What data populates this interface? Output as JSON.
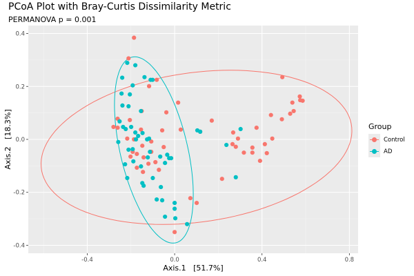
{
  "chart_data": {
    "type": "scatter",
    "title": "PCoA Plot with Bray-Curtis Dissimilarity Metric",
    "subtitle": "PERMANOVA p = 0.001",
    "xlabel": "Axis.1   [51.7%]",
    "ylabel": "Axis.2   [18.3%]",
    "xlim": [
      -0.67,
      0.84
    ],
    "ylim": [
      -0.43,
      0.43
    ],
    "x_ticks": [
      -0.4,
      0.0,
      0.4,
      0.8
    ],
    "x_tick_labels": [
      "-0.4",
      "0.0",
      "0.4",
      "0.8"
    ],
    "y_ticks": [
      -0.4,
      -0.2,
      0.0,
      0.2,
      0.4
    ],
    "y_tick_labels": [
      "-0.4",
      "-0.2",
      "0.0",
      "0.2",
      "0.4"
    ],
    "grid": true,
    "legend": {
      "title": "Group",
      "position": "right"
    },
    "series": [
      {
        "name": "Control",
        "color": "#F8766D",
        "points": [
          [
            -0.186,
            0.384
          ],
          [
            -0.211,
            0.306
          ],
          [
            -0.082,
            0.225
          ],
          [
            -0.117,
            0.201
          ],
          [
            -0.151,
            0.107
          ],
          [
            -0.038,
            0.102
          ],
          [
            0.016,
            0.139
          ],
          [
            -0.261,
            0.078
          ],
          [
            -0.28,
            0.047
          ],
          [
            -0.261,
            0.044
          ],
          [
            -0.205,
            0.073
          ],
          [
            0.028,
            0.037
          ],
          [
            -0.217,
            0.003
          ],
          [
            -0.186,
            0.0
          ],
          [
            -0.154,
            0.037
          ],
          [
            -0.057,
            0.034
          ],
          [
            -0.192,
            -0.047
          ],
          [
            -0.202,
            -0.065
          ],
          [
            -0.173,
            -0.055
          ],
          [
            -0.107,
            -0.008
          ],
          [
            -0.107,
            -0.047
          ],
          [
            -0.05,
            -0.029
          ],
          [
            -0.148,
            -0.024
          ],
          [
            -0.142,
            -0.068
          ],
          [
            -0.12,
            -0.092
          ],
          [
            -0.088,
            -0.086
          ],
          [
            -0.173,
            -0.107
          ],
          [
            -0.072,
            -0.115
          ],
          [
            -0.145,
            -0.123
          ],
          [
            0.072,
            -0.222
          ],
          [
            0.101,
            -0.24
          ],
          [
            0.0,
            -0.35
          ],
          [
            0.17,
            0.071
          ],
          [
            0.117,
            0.029
          ],
          [
            0.268,
            0.026
          ],
          [
            0.265,
            -0.018
          ],
          [
            0.29,
            0.003
          ],
          [
            0.356,
            -0.031
          ],
          [
            0.375,
            0.044
          ],
          [
            0.413,
            -0.018
          ],
          [
            0.447,
            0.003
          ],
          [
            0.441,
            0.092
          ],
          [
            0.491,
            0.076
          ],
          [
            0.539,
            0.139
          ],
          [
            0.573,
            0.162
          ],
          [
            0.356,
            -0.05
          ],
          [
            0.422,
            -0.052
          ],
          [
            0.391,
            -0.081
          ],
          [
            0.217,
            -0.149
          ],
          [
            0.493,
            0.235
          ],
          [
            0.575,
            0.148
          ],
          [
            0.586,
            0.146
          ],
          [
            0.529,
            0.097
          ],
          [
            0.545,
            0.107
          ],
          [
            0.317,
            -0.05
          ],
          [
            0.28,
            -0.028
          ]
        ]
      },
      {
        "name": "AD",
        "color": "#00BFC4",
        "points": [
          [
            -0.217,
            0.289
          ],
          [
            -0.18,
            0.28
          ],
          [
            -0.24,
            0.233
          ],
          [
            -0.192,
            0.204
          ],
          [
            -0.138,
            0.235
          ],
          [
            -0.11,
            0.225
          ],
          [
            -0.101,
            0.225
          ],
          [
            -0.243,
            0.173
          ],
          [
            -0.205,
            0.17
          ],
          [
            -0.211,
            0.125
          ],
          [
            -0.239,
            0.128
          ],
          [
            -0.252,
            0.068
          ],
          [
            -0.236,
            0.047
          ],
          [
            -0.199,
            0.047
          ],
          [
            -0.154,
            0.107
          ],
          [
            -0.147,
            0.024
          ],
          [
            -0.167,
            0.013
          ],
          [
            -0.18,
            0.026
          ],
          [
            -0.224,
            0.039
          ],
          [
            -0.258,
            -0.01
          ],
          [
            -0.192,
            -0.037
          ],
          [
            -0.211,
            -0.039
          ],
          [
            -0.177,
            0.0
          ],
          [
            -0.126,
            0.0
          ],
          [
            -0.117,
            0.003
          ],
          [
            -0.113,
            -0.047
          ],
          [
            -0.123,
            -0.068
          ],
          [
            -0.189,
            -0.083
          ],
          [
            -0.227,
            -0.094
          ],
          [
            -0.154,
            -0.102
          ],
          [
            -0.217,
            -0.146
          ],
          [
            -0.066,
            -0.065
          ],
          [
            -0.034,
            -0.058
          ],
          [
            -0.044,
            -0.089
          ],
          [
            -0.025,
            -0.071
          ],
          [
            -0.1,
            -0.146
          ],
          [
            -0.063,
            -0.18
          ],
          [
            -0.148,
            -0.165
          ],
          [
            -0.142,
            -0.175
          ],
          [
            -0.082,
            -0.227
          ],
          [
            -0.057,
            -0.23
          ],
          [
            0.0,
            -0.262
          ],
          [
            -0.044,
            -0.292
          ],
          [
            0.003,
            -0.298
          ],
          [
            0.057,
            -0.32
          ],
          [
            0.104,
            0.034
          ],
          [
            0.117,
            0.029
          ],
          [
            0.302,
            0.039
          ],
          [
            0.237,
            -0.021
          ],
          [
            0.28,
            -0.143
          ],
          [
            -0.016,
            -0.071
          ],
          [
            0.0,
            -0.24
          ]
        ]
      }
    ],
    "ellipses": [
      {
        "group": "Control",
        "center": [
          0.1,
          -0.03
        ],
        "semi_axes": [
          0.715,
          0.283
        ],
        "angle_deg": 6
      },
      {
        "group": "AD",
        "center": [
          -0.095,
          -0.04
        ],
        "semi_axes": [
          0.365,
          0.152
        ],
        "angle_deg": -73
      }
    ]
  }
}
